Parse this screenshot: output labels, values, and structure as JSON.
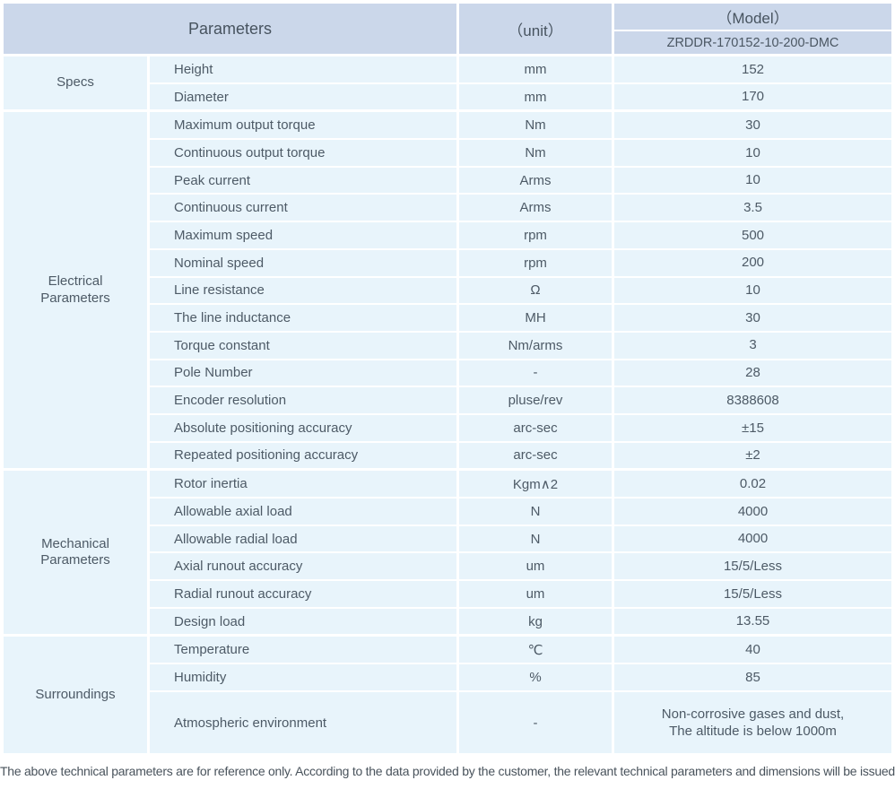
{
  "header": {
    "parameters_label": "Parameters",
    "unit_label": "（unit）",
    "model_label": "（Model）",
    "model_value": "ZRDDR-170152-10-200-DMC"
  },
  "sections": [
    {
      "group": "Specs",
      "rows": [
        [
          "Height",
          "mm",
          "152"
        ],
        [
          "Diameter",
          "mm",
          "170"
        ]
      ]
    },
    {
      "group": "Electrical\nParameters",
      "rows": [
        [
          "Maximum output torque",
          "Nm",
          "30"
        ],
        [
          "Continuous output torque",
          "Nm",
          "10"
        ],
        [
          "Peak current",
          "Arms",
          "10"
        ],
        [
          "Continuous current",
          "Arms",
          "3.5"
        ],
        [
          "Maximum speed",
          "rpm",
          "500"
        ],
        [
          "Nominal speed",
          "rpm",
          "200"
        ],
        [
          "Line resistance",
          "Ω",
          "10"
        ],
        [
          "The line inductance",
          "MH",
          "30"
        ],
        [
          "Torque constant",
          "Nm/arms",
          "3"
        ],
        [
          "Pole Number",
          "-",
          "28"
        ],
        [
          "Encoder resolution",
          "pluse/rev",
          "8388608"
        ],
        [
          "Absolute positioning accuracy",
          "arc-sec",
          "±15"
        ],
        [
          "Repeated positioning accuracy",
          "arc-sec",
          "±2"
        ]
      ]
    },
    {
      "group": "Mechanical\nParameters",
      "rows": [
        [
          "Rotor inertia",
          "Kgm∧2",
          "0.02"
        ],
        [
          "Allowable axial load",
          "N",
          "4000"
        ],
        [
          "Allowable radial load",
          "N",
          "4000"
        ],
        [
          "Axial runout accuracy",
          "um",
          "15/5/Less"
        ],
        [
          "Radial runout accuracy",
          "um",
          "15/5/Less"
        ],
        [
          "Design load",
          "kg",
          "13.55"
        ]
      ]
    },
    {
      "group": "Surroundings",
      "rows": [
        [
          "Temperature",
          "℃",
          "40"
        ],
        [
          "Humidity",
          "%",
          "85"
        ],
        [
          "Atmospheric environment",
          "-",
          "Non-corrosive gases and dust,\nThe altitude is below 1000m"
        ]
      ]
    }
  ],
  "footer_note": "The above technical parameters are for reference only. According to the data provided by the customer, the relevant technical parameters and dimensions will be issued."
}
